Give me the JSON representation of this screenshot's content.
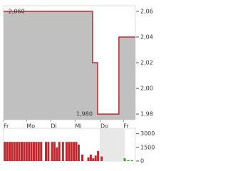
{
  "chart_data": [
    {
      "type": "area",
      "color": "#c0282e",
      "fill": "#c0c0c0",
      "x": [
        0,
        3.67,
        3.67,
        3.88,
        3.88,
        4.76,
        4.76,
        5.44
      ],
      "values": [
        2.06,
        2.06,
        2.02,
        2.02,
        1.98,
        1.98,
        2.04,
        2.04
      ],
      "xlim": [
        0,
        5.44
      ],
      "ylim": [
        1.9756,
        2.0644
      ],
      "xticks": [
        {
          "value": 0,
          "label": "Fr"
        },
        {
          "value": 0.95,
          "label": "Mo"
        },
        {
          "value": 1.95,
          "label": "Di"
        },
        {
          "value": 2.95,
          "label": "Mi"
        },
        {
          "value": 4.0,
          "label": "Do"
        },
        {
          "value": 4.95,
          "label": "Fr"
        }
      ],
      "yticks": [
        {
          "value": 1.98,
          "label": "1,98"
        },
        {
          "value": 2.0,
          "label": "2,00"
        },
        {
          "value": 2.02,
          "label": "2,02"
        },
        {
          "value": 2.04,
          "label": "2,04"
        },
        {
          "value": 2.06,
          "label": "2,06"
        }
      ],
      "annotations": [
        {
          "text": "2,060",
          "x": 0.2,
          "y": 2.06
        },
        {
          "text": "1,980",
          "x": 3.0,
          "y": 1.98
        }
      ]
    },
    {
      "type": "bar",
      "x": [
        0.05,
        0.15,
        0.25,
        0.35,
        0.45,
        0.55,
        0.65,
        0.75,
        0.85,
        0.95,
        1.05,
        1.15,
        1.25,
        1.35,
        1.45,
        1.55,
        1.75,
        1.85,
        2.0,
        2.1,
        2.2,
        2.3,
        2.45,
        2.6,
        2.7,
        2.8,
        2.9,
        3.0,
        3.1,
        3.25,
        3.5,
        3.6,
        3.7,
        3.8,
        3.9,
        4.05,
        5.0,
        5.15,
        5.3
      ],
      "values": [
        2100,
        2100,
        2100,
        2100,
        2100,
        2100,
        2100,
        2100,
        2100,
        2100,
        2100,
        2100,
        2100,
        2100,
        2100,
        2100,
        2100,
        2100,
        2100,
        2100,
        1500,
        2100,
        2100,
        2100,
        2100,
        2100,
        2100,
        2100,
        1800,
        700,
        400,
        700,
        300,
        600,
        1100,
        500,
        300,
        100,
        100
      ],
      "colors": [
        "#c0282e",
        "#c0282e",
        "#c0282e",
        "#c0282e",
        "#c0282e",
        "#c0282e",
        "#c0282e",
        "#c0282e",
        "#c0282e",
        "#c0282e",
        "#c0282e",
        "#c0282e",
        "#c0282e",
        "#c0282e",
        "#c0282e",
        "#c0282e",
        "#c0282e",
        "#c0282e",
        "#c0282e",
        "#c0282e",
        "#c0282e",
        "#c0282e",
        "#c0282e",
        "#c0282e",
        "#c0282e",
        "#c0282e",
        "#c0282e",
        "#c0282e",
        "#c0282e",
        "#c0282e",
        "#c0282e",
        "#c0282e",
        "#c0282e",
        "#c0282e",
        "#c0282e",
        "#c0282e",
        "#3aa03a",
        "#3aa03a",
        "#3aa03a"
      ],
      "xlim": [
        0,
        5.44
      ],
      "ylim": [
        0,
        3600
      ],
      "yticks": [
        0,
        1500,
        3000
      ]
    }
  ]
}
